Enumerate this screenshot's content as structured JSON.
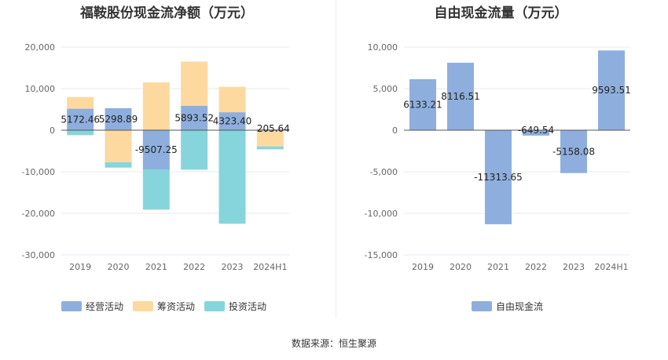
{
  "chart_data": [
    {
      "type": "bar",
      "stacked": true,
      "title": "福鞍股份现金流净额（万元）",
      "categories": [
        "2019",
        "2020",
        "2021",
        "2022",
        "2023",
        "2024H1"
      ],
      "y_ticks": [
        "20,000",
        "10,000",
        "0",
        "-10,000",
        "-20,000",
        "-30,000"
      ],
      "ylim": [
        -30000,
        20000
      ],
      "grid": true,
      "legend_position": "bottom-left",
      "series": [
        {
          "name": "经营活动",
          "color": "#8eafdd",
          "values": [
            5172.46,
            5298.89,
            -9507.25,
            5893.52,
            4323.4,
            205.64
          ]
        },
        {
          "name": "筹资活动",
          "color": "#fdd9a0",
          "values": [
            2800,
            -7700,
            11500,
            10600,
            6100,
            -3900
          ]
        },
        {
          "name": "投资活动",
          "color": "#87d5dc",
          "values": [
            -1200,
            -1300,
            -9600,
            -9500,
            -22500,
            -700
          ]
        }
      ],
      "data_labels": [
        "5172.46",
        "5298.89",
        "-9507.25",
        "5893.52",
        "4323.40",
        "205.64"
      ]
    },
    {
      "type": "bar",
      "title": "自由现金流量（万元）",
      "categories": [
        "2019",
        "2020",
        "2021",
        "2022",
        "2023",
        "2024H1"
      ],
      "y_ticks": [
        "10,000",
        "5,000",
        "0",
        "-5,000",
        "-10,000",
        "-15,000"
      ],
      "ylim": [
        -15000,
        10000
      ],
      "grid": true,
      "legend_position": "bottom",
      "series": [
        {
          "name": "自由现金流",
          "color": "#8eafdd",
          "values": [
            6133.21,
            8116.51,
            -11313.65,
            -649.54,
            -5158.08,
            9593.51
          ]
        }
      ],
      "data_labels": [
        "6133.21",
        "8116.51",
        "-11313.65",
        "-649.54",
        "-5158.08",
        "9593.51"
      ]
    }
  ],
  "source": "数据来源：恒生聚源"
}
